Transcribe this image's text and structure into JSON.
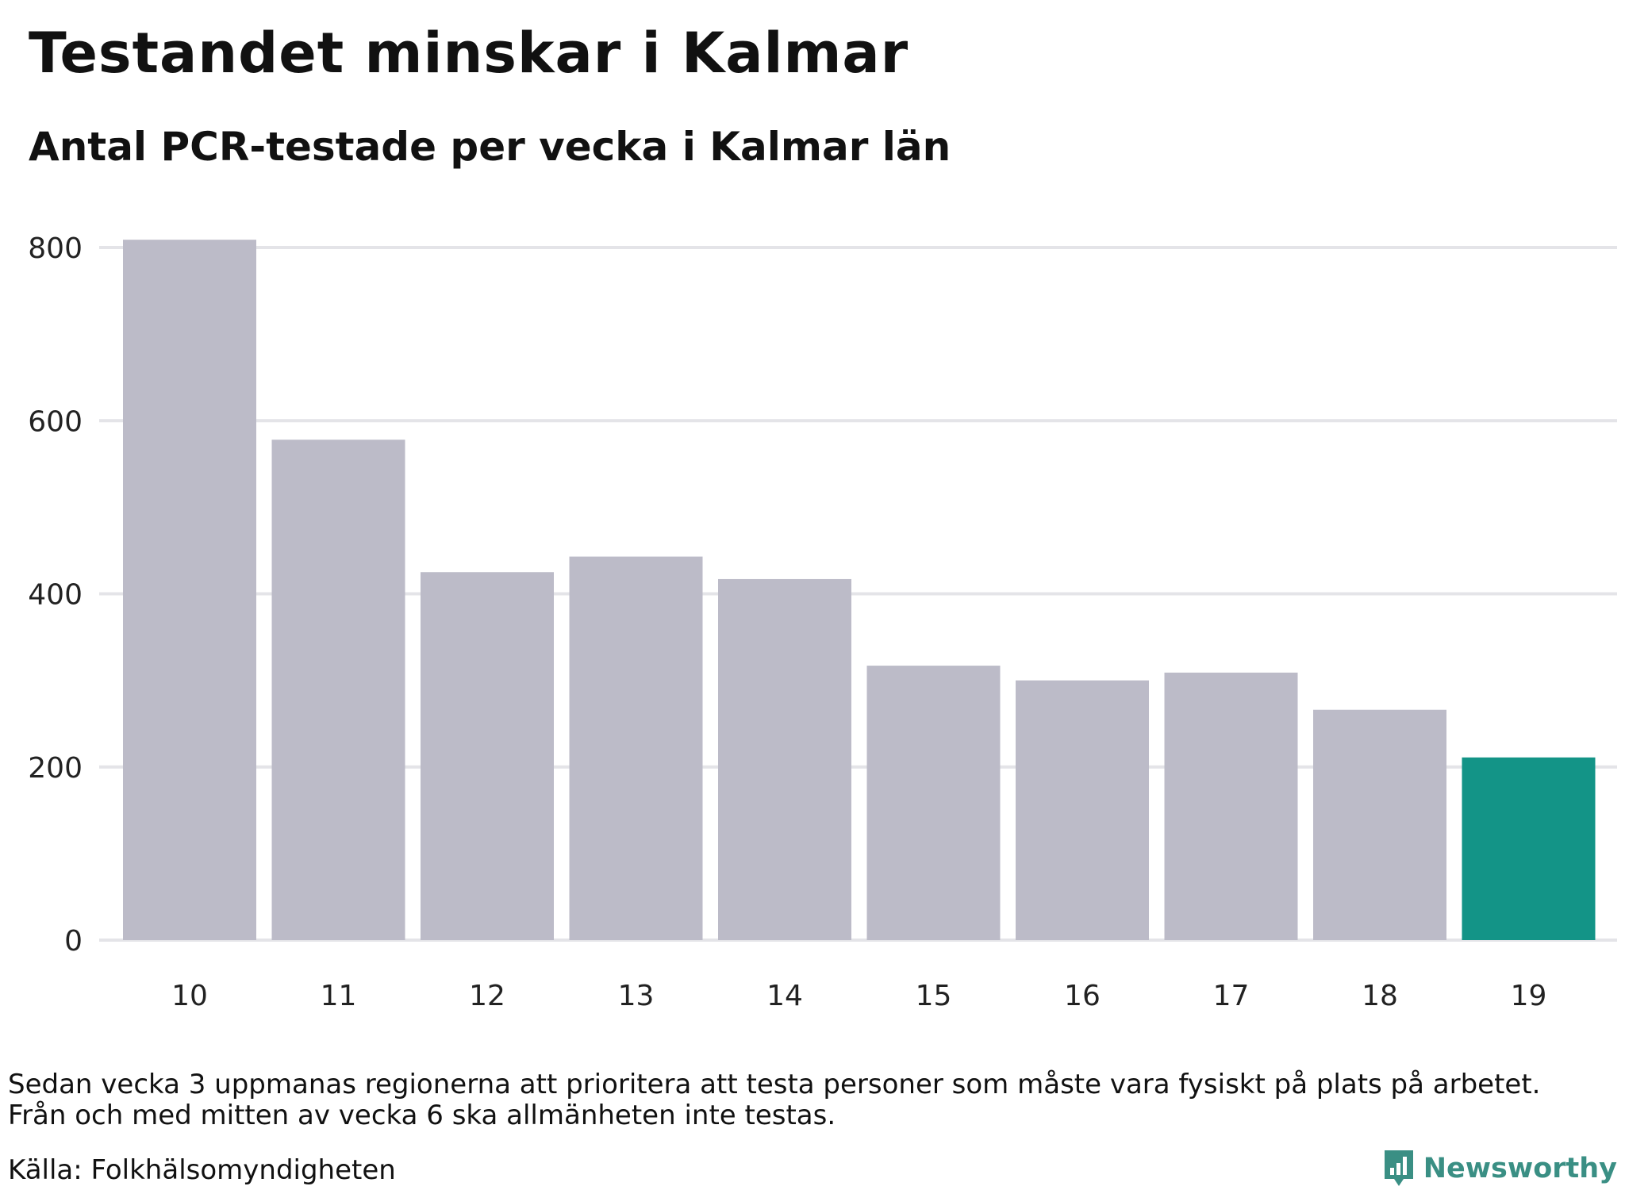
{
  "header": {
    "title": "Testandet minskar i Kalmar",
    "subtitle": "Antal PCR-testade per vecka i Kalmar län"
  },
  "chart_data": {
    "type": "bar",
    "categories": [
      "10",
      "11",
      "12",
      "13",
      "14",
      "15",
      "16",
      "17",
      "18",
      "19"
    ],
    "values": [
      809,
      578,
      425,
      443,
      417,
      317,
      300,
      309,
      266,
      211
    ],
    "ylim": [
      0,
      800
    ],
    "yticks": [
      0,
      200,
      400,
      600,
      800
    ],
    "grid": true,
    "colors": {
      "bar": "#bcbbc8",
      "highlight": "#139487",
      "grid": "#e4e4e8"
    },
    "highlight_index": 9
  },
  "footer": {
    "note_lines": [
      "Sedan vecka 3 uppmanas regionerna att prioritera att testa personer som måste vara fysiskt på plats på arbetet.",
      "Från och med mitten av vecka 6 ska allmänheten inte testas."
    ],
    "source": "Källa: Folkhälsomyndigheten",
    "brand": "Newsworthy",
    "brand_icon": "bar-chart-bubble-icon",
    "brand_color": "#3a8f84"
  }
}
